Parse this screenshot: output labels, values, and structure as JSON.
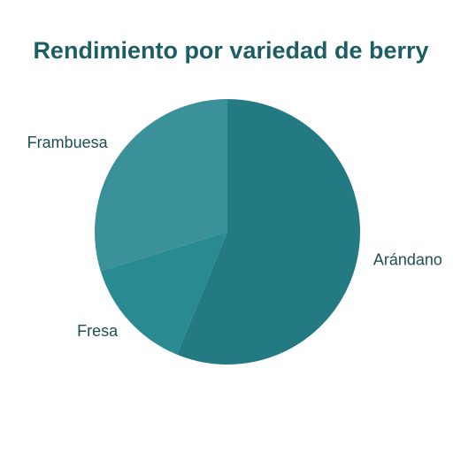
{
  "chart_data": {
    "type": "pie",
    "title": "Rendimiento por variedad de berry",
    "categories": [
      "Arándano",
      "Fresa",
      "Frambuesa"
    ],
    "values": [
      56.2,
      14.0,
      29.8
    ],
    "colors": [
      "#237a82",
      "#2a8a91",
      "#3a9199"
    ]
  },
  "colors": {
    "title": "#1c5e63",
    "label": "#1e4e53",
    "background": "#ffffff"
  }
}
